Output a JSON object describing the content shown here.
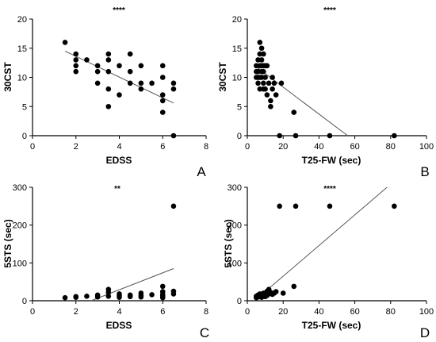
{
  "chart_data": [
    {
      "panel": "A",
      "type": "scatter",
      "significance": "****",
      "xlabel": "EDSS",
      "ylabel": "30CST",
      "xlim": [
        0,
        8
      ],
      "ylim": [
        0,
        20
      ],
      "xticks": [
        0,
        2,
        4,
        6,
        8
      ],
      "yticks": [
        0,
        5,
        10,
        15,
        20
      ],
      "points": [
        [
          1.5,
          16
        ],
        [
          2,
          14
        ],
        [
          2,
          13
        ],
        [
          2,
          12
        ],
        [
          2,
          11
        ],
        [
          2.5,
          13
        ],
        [
          3,
          12
        ],
        [
          3,
          11
        ],
        [
          3,
          9
        ],
        [
          3.5,
          14
        ],
        [
          3.5,
          13
        ],
        [
          3.5,
          11
        ],
        [
          3.5,
          8
        ],
        [
          3.5,
          5
        ],
        [
          4,
          12
        ],
        [
          4,
          7
        ],
        [
          4.5,
          14
        ],
        [
          4.5,
          11
        ],
        [
          4.5,
          9
        ],
        [
          5,
          12
        ],
        [
          5,
          9
        ],
        [
          5,
          8
        ],
        [
          5.5,
          9
        ],
        [
          6,
          12
        ],
        [
          6,
          10
        ],
        [
          6,
          7
        ],
        [
          6,
          6
        ],
        [
          6,
          4
        ],
        [
          6.5,
          9
        ],
        [
          6.5,
          8
        ],
        [
          6.5,
          0
        ]
      ],
      "trend_line": [
        [
          1.5,
          14.5
        ],
        [
          6.5,
          5.6
        ]
      ]
    },
    {
      "panel": "B",
      "type": "scatter",
      "significance": "****",
      "xlabel": "T25-FW (sec)",
      "ylabel": "30CST",
      "xlim": [
        0,
        100
      ],
      "ylim": [
        0,
        20
      ],
      "xticks": [
        0,
        20,
        40,
        60,
        80,
        100
      ],
      "yticks": [
        0,
        5,
        10,
        15,
        20
      ],
      "points": [
        [
          5,
          12
        ],
        [
          5,
          11
        ],
        [
          5,
          10
        ],
        [
          6,
          13
        ],
        [
          6,
          11
        ],
        [
          6,
          10
        ],
        [
          6,
          9
        ],
        [
          7,
          16
        ],
        [
          7,
          14
        ],
        [
          7,
          12
        ],
        [
          7,
          10
        ],
        [
          7,
          8
        ],
        [
          8,
          15
        ],
        [
          8,
          13
        ],
        [
          8,
          12
        ],
        [
          8,
          11
        ],
        [
          8,
          10
        ],
        [
          9,
          14
        ],
        [
          9,
          12
        ],
        [
          9,
          11
        ],
        [
          9,
          9
        ],
        [
          9,
          8
        ],
        [
          10,
          12
        ],
        [
          10,
          10
        ],
        [
          10,
          8
        ],
        [
          11,
          12
        ],
        [
          11,
          7
        ],
        [
          12,
          9
        ],
        [
          13,
          6
        ],
        [
          13,
          5
        ],
        [
          14,
          10
        ],
        [
          14,
          8
        ],
        [
          15,
          9
        ],
        [
          16,
          7
        ],
        [
          18,
          0
        ],
        [
          19,
          9
        ],
        [
          26,
          4
        ],
        [
          27,
          0
        ],
        [
          46,
          0
        ],
        [
          82,
          0
        ]
      ],
      "trend_line": [
        [
          5,
          11.8
        ],
        [
          56,
          0
        ]
      ]
    },
    {
      "panel": "C",
      "type": "scatter",
      "significance": "**",
      "xlabel": "EDSS",
      "ylabel": "5STS (sec)",
      "xlim": [
        0,
        8
      ],
      "ylim": [
        0,
        300
      ],
      "xticks": [
        0,
        2,
        4,
        6,
        8
      ],
      "yticks": [
        0,
        100,
        200,
        300
      ],
      "points": [
        [
          1.5,
          8
        ],
        [
          2,
          9
        ],
        [
          2,
          11
        ],
        [
          2.5,
          12
        ],
        [
          3,
          10
        ],
        [
          3,
          15
        ],
        [
          3.5,
          30
        ],
        [
          3.5,
          22
        ],
        [
          3.5,
          12
        ],
        [
          4,
          18
        ],
        [
          4,
          14
        ],
        [
          4,
          9
        ],
        [
          4.5,
          15
        ],
        [
          4.5,
          11
        ],
        [
          5,
          20
        ],
        [
          5,
          14
        ],
        [
          5,
          10
        ],
        [
          5.5,
          16
        ],
        [
          6,
          38
        ],
        [
          6,
          24
        ],
        [
          6,
          17
        ],
        [
          6,
          14
        ],
        [
          6,
          10
        ],
        [
          6,
          8
        ],
        [
          6.5,
          250
        ],
        [
          6.5,
          25
        ],
        [
          6.5,
          18
        ]
      ],
      "trend_line": [
        [
          2.7,
          0
        ],
        [
          6.5,
          85
        ]
      ]
    },
    {
      "panel": "D",
      "type": "scatter",
      "significance": "****",
      "xlabel": "T25-FW (sec)",
      "ylabel": "5STS (sec)",
      "xlim": [
        0,
        100
      ],
      "ylim": [
        0,
        300
      ],
      "xticks": [
        0,
        20,
        40,
        60,
        80,
        100
      ],
      "yticks": [
        0,
        100,
        200,
        300
      ],
      "points": [
        [
          5,
          8
        ],
        [
          5,
          12
        ],
        [
          6,
          10
        ],
        [
          6,
          15
        ],
        [
          7,
          11
        ],
        [
          7,
          18
        ],
        [
          8,
          9
        ],
        [
          8,
          14
        ],
        [
          9,
          12
        ],
        [
          9,
          20
        ],
        [
          10,
          16
        ],
        [
          10,
          11
        ],
        [
          11,
          25
        ],
        [
          11,
          14
        ],
        [
          12,
          18
        ],
        [
          12,
          30
        ],
        [
          13,
          22
        ],
        [
          14,
          17
        ],
        [
          15,
          20
        ],
        [
          16,
          24
        ],
        [
          18,
          250
        ],
        [
          20,
          20
        ],
        [
          26,
          38
        ],
        [
          27,
          250
        ],
        [
          46,
          250
        ],
        [
          82,
          250
        ]
      ],
      "trend_line": [
        [
          4,
          0
        ],
        [
          78,
          300
        ]
      ]
    }
  ]
}
